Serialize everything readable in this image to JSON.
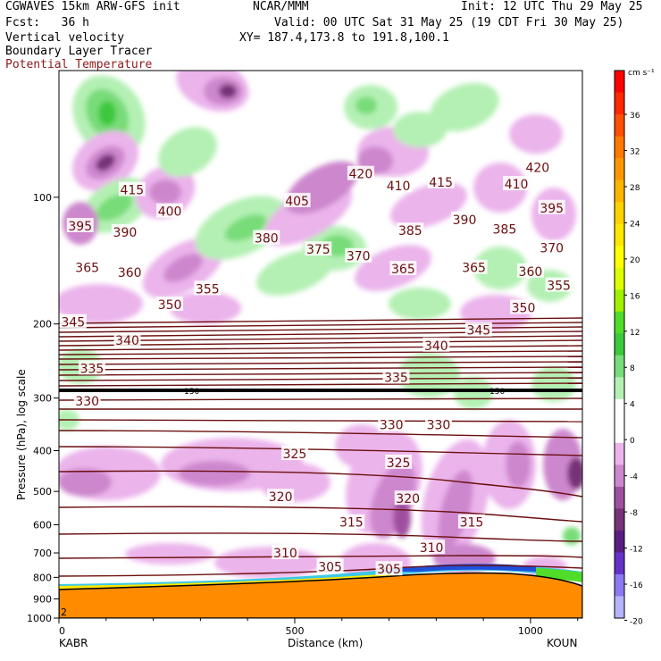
{
  "header": {
    "model": "CGWAVES 15km ARW-GFS init",
    "org": "NCAR/MMM",
    "init": "Init: 12 UTC Thu 29 May 25",
    "fcst": "Fcst:   36 h",
    "valid": "Valid: 00 UTC Sat 31 May 25 (19 CDT Fri 30 May 25)",
    "field1": "Vertical velocity",
    "field2": "Boundary Layer Tracer",
    "field3": "Potential Temperature",
    "xy": "XY= 187.4,173.8 to 191.8,100.1"
  },
  "colors": {
    "theta": "#6b0f0f",
    "field3_text": "#8b1a1a",
    "up_light": "#b4f0b4",
    "up_mid": "#78dc78",
    "up_strong": "#3cc83c",
    "down_light": "#ebb4eb",
    "down_mid": "#cd87cd",
    "down_strong": "#a050a0",
    "down_deep": "#783278",
    "terrain": "#ff8c00"
  },
  "chart_data": {
    "type": "cross-section",
    "xlabel": "Distance (km)",
    "ylabel": "Pressure (hPa), log scale",
    "xlim": [
      0,
      1110
    ],
    "ylim": [
      1000,
      50
    ],
    "x_ticks": [
      0,
      500,
      1000
    ],
    "y_ticks": [
      100,
      200,
      300,
      400,
      500,
      600,
      700,
      800,
      900,
      1000
    ],
    "left_endpoint": "KABR",
    "right_endpoint": "KOUN",
    "corner_label": "2",
    "tropopause_marker": "150",
    "theta_levels": [
      305,
      310,
      315,
      320,
      325,
      330,
      335,
      340,
      345,
      350,
      355,
      360,
      365,
      370,
      375,
      380,
      385,
      390,
      395,
      400,
      405,
      410,
      415,
      420
    ],
    "theta_labels": [
      {
        "text": "420",
        "x": 640,
        "p": 88
      },
      {
        "text": "420",
        "x": 1015,
        "p": 85
      },
      {
        "text": "415",
        "x": 155,
        "p": 96
      },
      {
        "text": "415",
        "x": 810,
        "p": 92
      },
      {
        "text": "410",
        "x": 720,
        "p": 94
      },
      {
        "text": "410",
        "x": 970,
        "p": 93
      },
      {
        "text": "405",
        "x": 505,
        "p": 102
      },
      {
        "text": "400",
        "x": 235,
        "p": 108
      },
      {
        "text": "395",
        "x": 45,
        "p": 117
      },
      {
        "text": "395",
        "x": 1045,
        "p": 106
      },
      {
        "text": "390",
        "x": 140,
        "p": 121
      },
      {
        "text": "390",
        "x": 860,
        "p": 113
      },
      {
        "text": "385",
        "x": 745,
        "p": 120
      },
      {
        "text": "385",
        "x": 945,
        "p": 119
      },
      {
        "text": "380",
        "x": 440,
        "p": 125
      },
      {
        "text": "375",
        "x": 550,
        "p": 133
      },
      {
        "text": "370",
        "x": 635,
        "p": 138
      },
      {
        "text": "370",
        "x": 1045,
        "p": 132
      },
      {
        "text": "365",
        "x": 60,
        "p": 147
      },
      {
        "text": "365",
        "x": 730,
        "p": 148
      },
      {
        "text": "365",
        "x": 880,
        "p": 147
      },
      {
        "text": "360",
        "x": 150,
        "p": 151
      },
      {
        "text": "360",
        "x": 1000,
        "p": 150
      },
      {
        "text": "355",
        "x": 315,
        "p": 165
      },
      {
        "text": "355",
        "x": 1060,
        "p": 162
      },
      {
        "text": "350",
        "x": 235,
        "p": 180
      },
      {
        "text": "350",
        "x": 985,
        "p": 183
      },
      {
        "text": "345",
        "x": 30,
        "p": 198
      },
      {
        "text": "345",
        "x": 890,
        "p": 207
      },
      {
        "text": "340",
        "x": 145,
        "p": 219
      },
      {
        "text": "340",
        "x": 800,
        "p": 225
      },
      {
        "text": "335",
        "x": 70,
        "p": 255
      },
      {
        "text": "335",
        "x": 715,
        "p": 268
      },
      {
        "text": "330",
        "x": 60,
        "p": 305
      },
      {
        "text": "330",
        "x": 705,
        "p": 347
      },
      {
        "text": "330",
        "x": 805,
        "p": 347
      },
      {
        "text": "325",
        "x": 500,
        "p": 407
      },
      {
        "text": "325",
        "x": 720,
        "p": 427
      },
      {
        "text": "320",
        "x": 470,
        "p": 515
      },
      {
        "text": "320",
        "x": 740,
        "p": 520
      },
      {
        "text": "315",
        "x": 620,
        "p": 592
      },
      {
        "text": "315",
        "x": 875,
        "p": 592
      },
      {
        "text": "310",
        "x": 480,
        "p": 700
      },
      {
        "text": "310",
        "x": 790,
        "p": 680
      },
      {
        "text": "305",
        "x": 575,
        "p": 755
      },
      {
        "text": "305",
        "x": 700,
        "p": 765
      }
    ],
    "colorbar": {
      "units": "cm s⁻¹",
      "tick_labels": [
        "36",
        "32",
        "28",
        "24",
        "20",
        "16",
        "12",
        "8",
        "4",
        "0",
        "-4",
        "-8",
        "-12",
        "-16",
        "-20"
      ],
      "colors": [
        "#ff0000",
        "#ff2800",
        "#ff5000",
        "#ff7800",
        "#ff9600",
        "#ffb400",
        "#ffd200",
        "#ffe600",
        "#ffff00",
        "#dcff00",
        "#a0f000",
        "#50dc28",
        "#3cc83c",
        "#78dc78",
        "#b4f0b4",
        "#ffffff",
        "#ffffff",
        "#ebb4eb",
        "#cd87cd",
        "#a050a0",
        "#783278",
        "#5a1e82",
        "#6432c8",
        "#8c78f0",
        "#b4b4ff"
      ]
    }
  }
}
